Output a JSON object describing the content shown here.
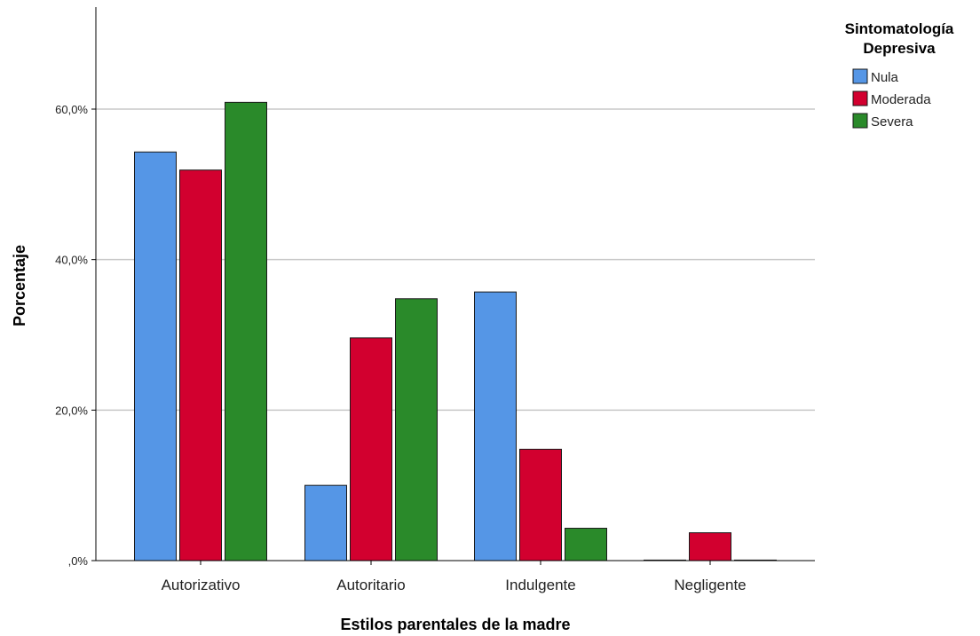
{
  "chart_data": {
    "type": "bar",
    "xlabel": "Estilos parentales de la madre",
    "ylabel": "Porcentaje",
    "categories": [
      "Autorizativo",
      "Autoritario",
      "Indulgente",
      "Negligente"
    ],
    "ylim": [
      0,
      72
    ],
    "yticks": [
      {
        "value": 0,
        "label": ",0%"
      },
      {
        "value": 20,
        "label": "20,0%"
      },
      {
        "value": 40,
        "label": "40,0%"
      },
      {
        "value": 60,
        "label": "60,0%"
      }
    ],
    "grid": true,
    "legend": {
      "title_lines": [
        "Sintomatología",
        "Depresiva"
      ],
      "placement": "top-right"
    },
    "series": [
      {
        "name": "Nula",
        "color": "#5596e6",
        "values": [
          54.3,
          10.0,
          35.7,
          0.0
        ]
      },
      {
        "name": "Moderada",
        "color": "#d2002f",
        "values": [
          51.9,
          29.6,
          14.8,
          3.7
        ]
      },
      {
        "name": "Severa",
        "color": "#2a8a2a",
        "values": [
          60.9,
          34.8,
          4.3,
          0.0
        ]
      }
    ]
  }
}
